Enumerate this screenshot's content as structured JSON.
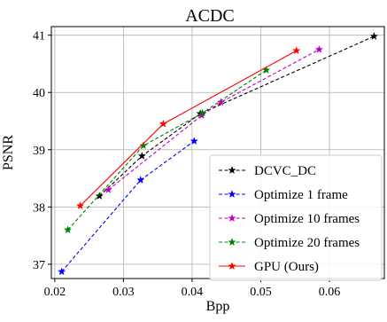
{
  "chart_data": {
    "type": "line",
    "title": "ACDC",
    "xlabel": "Bpp",
    "ylabel": "PSNR",
    "xlim": [
      0.0195,
      0.068
    ],
    "ylim": [
      36.75,
      41.15
    ],
    "xticks": [
      0.02,
      0.03,
      0.04,
      0.05,
      0.06
    ],
    "xtick_labels": [
      "0.02",
      "0.03",
      "0.04",
      "0.05",
      "0.06"
    ],
    "yticks": [
      37,
      38,
      39,
      40,
      41
    ],
    "ytick_labels": [
      "37",
      "38",
      "39",
      "40",
      "41"
    ],
    "grid": true,
    "legend_position": "lower-right",
    "series": [
      {
        "name": "DCVC_DC",
        "color": "#000000",
        "dashed": true,
        "marker": "star",
        "points": [
          [
            0.0265,
            38.19
          ],
          [
            0.0327,
            38.89
          ],
          [
            0.0412,
            39.63
          ],
          [
            0.0665,
            40.98
          ]
        ]
      },
      {
        "name": "Optimize 1 frame",
        "color": "#0000ff",
        "dashed": true,
        "marker": "star",
        "points": [
          [
            0.021,
            36.87
          ],
          [
            0.0325,
            38.47
          ],
          [
            0.0403,
            39.15
          ]
        ]
      },
      {
        "name": "Optimize 10 frames",
        "color": "#bf00bf",
        "dashed": true,
        "marker": "star",
        "points": [
          [
            0.0278,
            38.3
          ],
          [
            0.0414,
            39.6
          ],
          [
            0.0442,
            39.83
          ],
          [
            0.0585,
            40.75
          ]
        ]
      },
      {
        "name": "Optimize 20 frames",
        "color": "#008000",
        "dashed": true,
        "marker": "star",
        "points": [
          [
            0.0219,
            37.6
          ],
          [
            0.0329,
            39.07
          ],
          [
            0.0415,
            39.64
          ],
          [
            0.0508,
            40.39
          ]
        ]
      },
      {
        "name": "GPU (Ours)",
        "color": "#ff0000",
        "dashed": false,
        "marker": "star",
        "points": [
          [
            0.0237,
            38.02
          ],
          [
            0.0358,
            39.45
          ],
          [
            0.0552,
            40.73
          ]
        ]
      }
    ]
  }
}
